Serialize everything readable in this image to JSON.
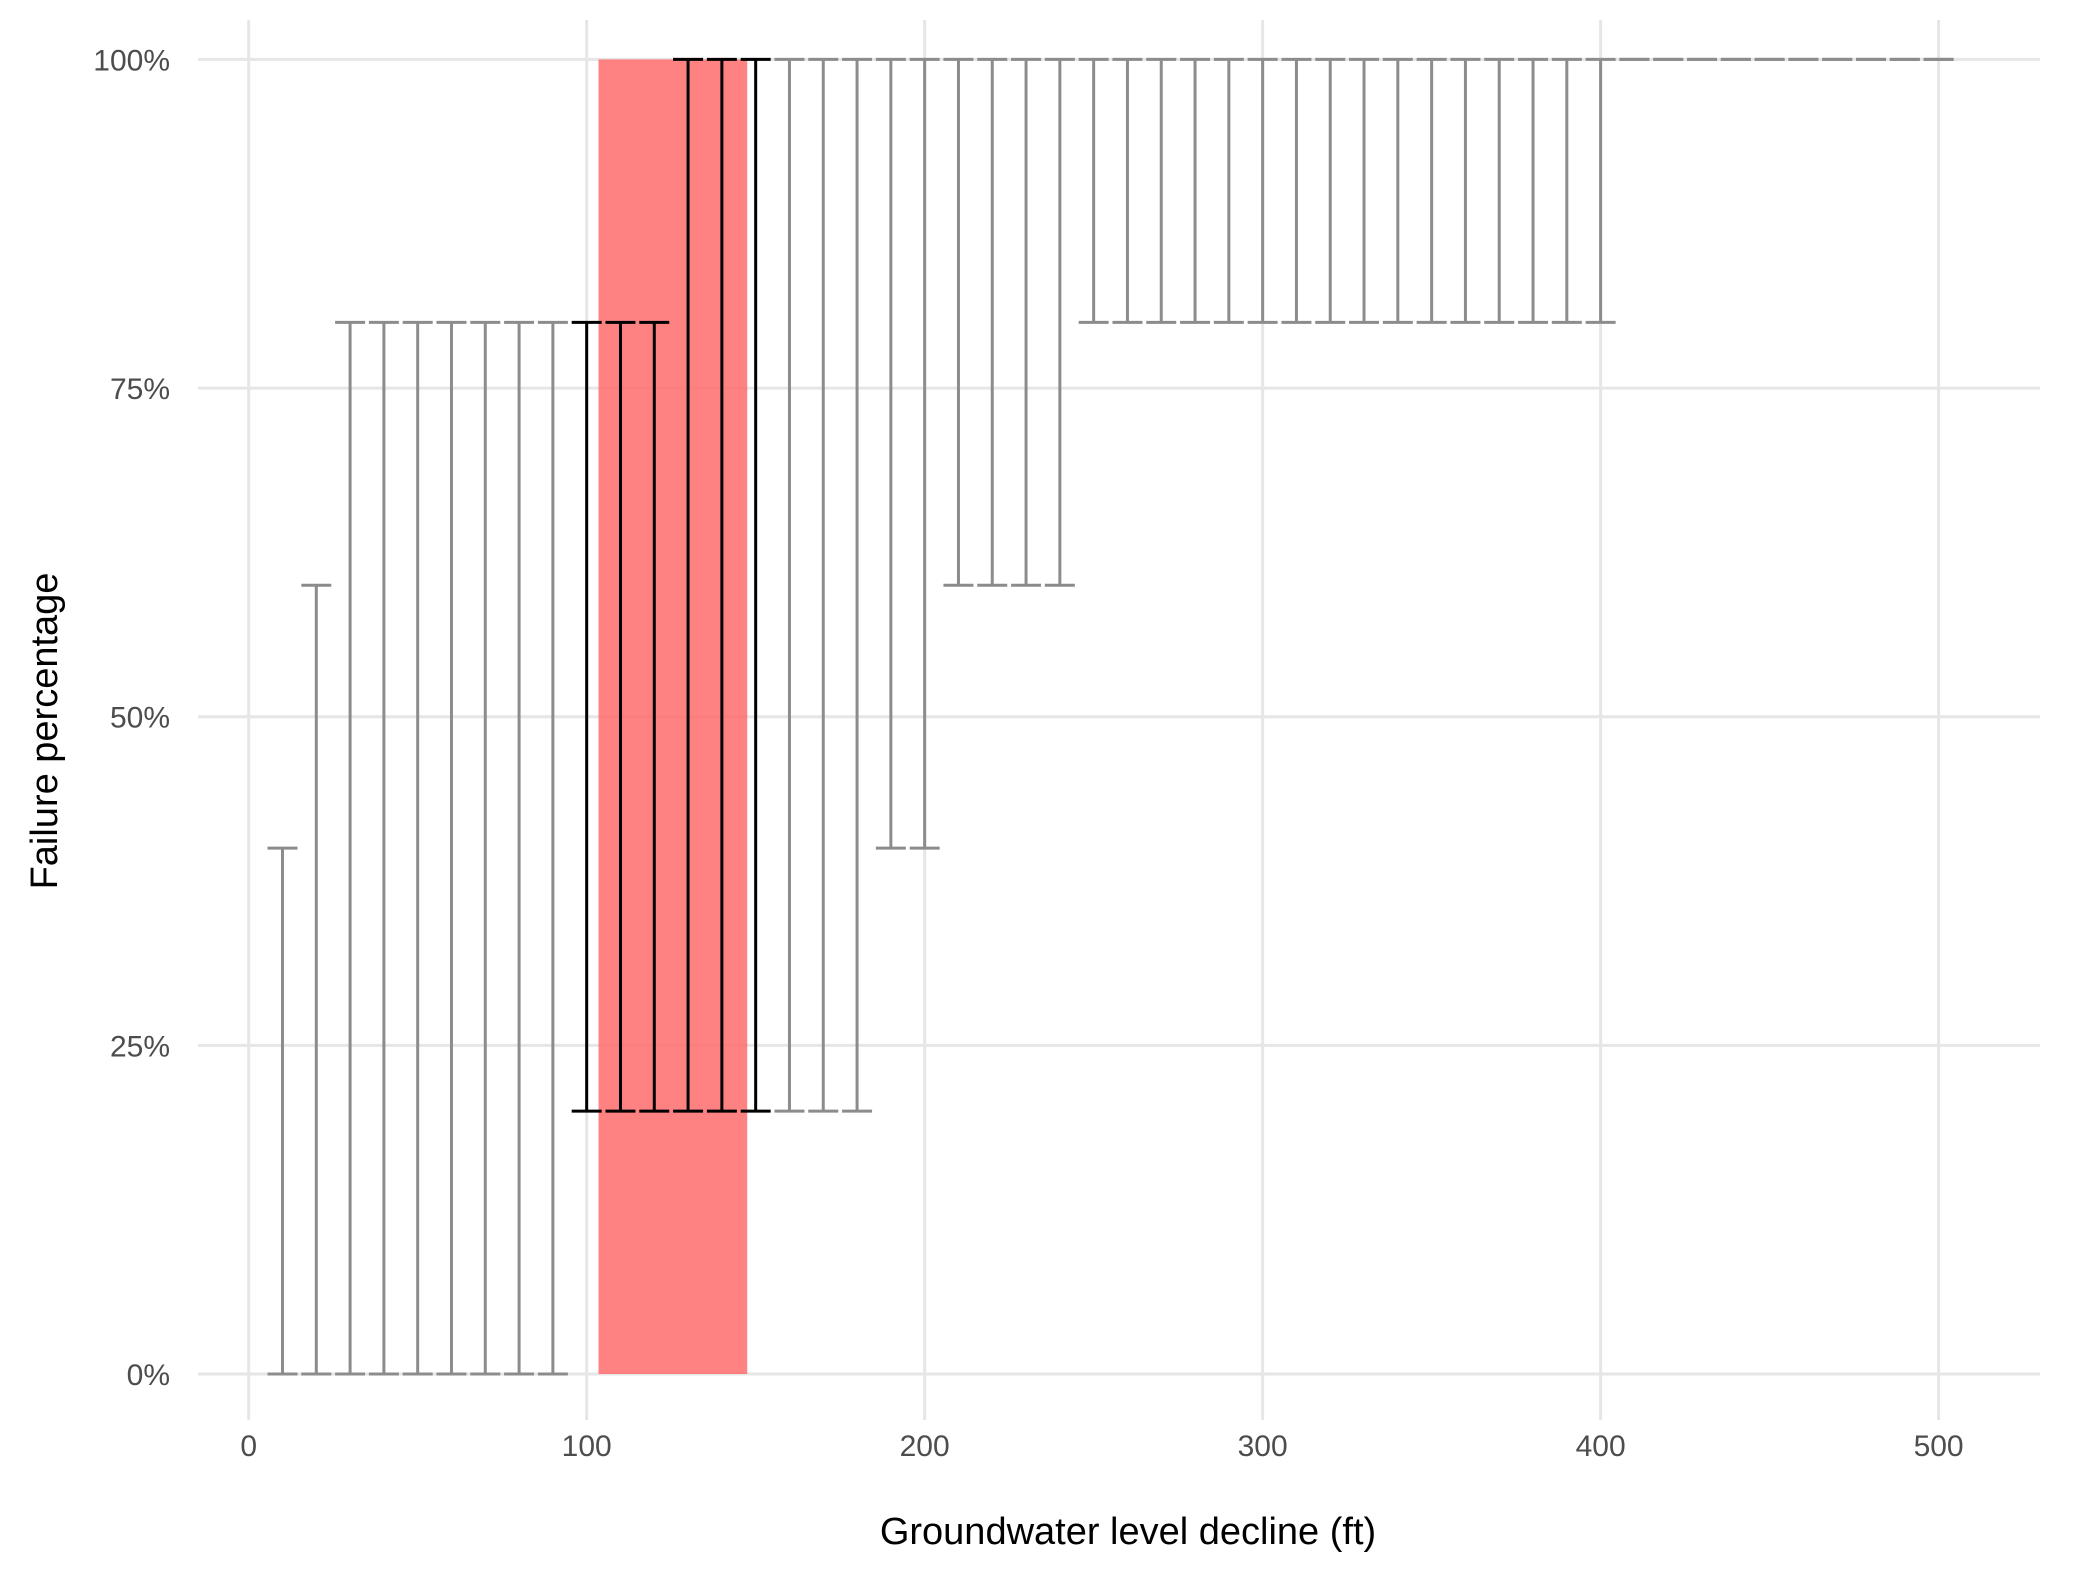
{
  "chart_data": {
    "type": "errorbar",
    "xlabel": "Groundwater level decline (ft)",
    "ylabel": "Failure percentage",
    "xlim": [
      -15,
      530
    ],
    "ylim": [
      -3.5,
      103
    ],
    "x_ticks": [
      0,
      100,
      200,
      300,
      400,
      500
    ],
    "x_tick_labels": [
      "0",
      "100",
      "200",
      "300",
      "400",
      "500"
    ],
    "y_ticks": [
      0,
      25,
      50,
      75,
      100
    ],
    "y_tick_labels": [
      "0%",
      "25%",
      "50%",
      "75%",
      "100%"
    ],
    "grid": true,
    "highlight_band": {
      "x_range": [
        103.5,
        147.5
      ],
      "y_range": [
        0,
        100
      ],
      "color": "#ff6666"
    },
    "error_bars": [
      {
        "x": 10,
        "lower": 0,
        "upper": 40,
        "highlighted": false
      },
      {
        "x": 20,
        "lower": 0,
        "upper": 60,
        "highlighted": false
      },
      {
        "x": 30,
        "lower": 0,
        "upper": 80,
        "highlighted": false
      },
      {
        "x": 40,
        "lower": 0,
        "upper": 80,
        "highlighted": false
      },
      {
        "x": 50,
        "lower": 0,
        "upper": 80,
        "highlighted": false
      },
      {
        "x": 60,
        "lower": 0,
        "upper": 80,
        "highlighted": false
      },
      {
        "x": 70,
        "lower": 0,
        "upper": 80,
        "highlighted": false
      },
      {
        "x": 80,
        "lower": 0,
        "upper": 80,
        "highlighted": false
      },
      {
        "x": 90,
        "lower": 0,
        "upper": 80,
        "highlighted": false
      },
      {
        "x": 100,
        "lower": 20,
        "upper": 80,
        "highlighted": true
      },
      {
        "x": 110,
        "lower": 20,
        "upper": 80,
        "highlighted": true
      },
      {
        "x": 120,
        "lower": 20,
        "upper": 80,
        "highlighted": true
      },
      {
        "x": 130,
        "lower": 20,
        "upper": 100,
        "highlighted": true
      },
      {
        "x": 140,
        "lower": 20,
        "upper": 100,
        "highlighted": true
      },
      {
        "x": 150,
        "lower": 20,
        "upper": 100,
        "highlighted": true
      },
      {
        "x": 160,
        "lower": 20,
        "upper": 100,
        "highlighted": false
      },
      {
        "x": 170,
        "lower": 20,
        "upper": 100,
        "highlighted": false
      },
      {
        "x": 180,
        "lower": 20,
        "upper": 100,
        "highlighted": false
      },
      {
        "x": 190,
        "lower": 40,
        "upper": 100,
        "highlighted": false
      },
      {
        "x": 200,
        "lower": 40,
        "upper": 100,
        "highlighted": false
      },
      {
        "x": 210,
        "lower": 60,
        "upper": 100,
        "highlighted": false
      },
      {
        "x": 220,
        "lower": 60,
        "upper": 100,
        "highlighted": false
      },
      {
        "x": 230,
        "lower": 60,
        "upper": 100,
        "highlighted": false
      },
      {
        "x": 240,
        "lower": 60,
        "upper": 100,
        "highlighted": false
      },
      {
        "x": 250,
        "lower": 80,
        "upper": 100,
        "highlighted": false
      },
      {
        "x": 260,
        "lower": 80,
        "upper": 100,
        "highlighted": false
      },
      {
        "x": 270,
        "lower": 80,
        "upper": 100,
        "highlighted": false
      },
      {
        "x": 280,
        "lower": 80,
        "upper": 100,
        "highlighted": false
      },
      {
        "x": 290,
        "lower": 80,
        "upper": 100,
        "highlighted": false
      },
      {
        "x": 300,
        "lower": 80,
        "upper": 100,
        "highlighted": false
      },
      {
        "x": 310,
        "lower": 80,
        "upper": 100,
        "highlighted": false
      },
      {
        "x": 320,
        "lower": 80,
        "upper": 100,
        "highlighted": false
      },
      {
        "x": 330,
        "lower": 80,
        "upper": 100,
        "highlighted": false
      },
      {
        "x": 340,
        "lower": 80,
        "upper": 100,
        "highlighted": false
      },
      {
        "x": 350,
        "lower": 80,
        "upper": 100,
        "highlighted": false
      },
      {
        "x": 360,
        "lower": 80,
        "upper": 100,
        "highlighted": false
      },
      {
        "x": 370,
        "lower": 80,
        "upper": 100,
        "highlighted": false
      },
      {
        "x": 380,
        "lower": 80,
        "upper": 100,
        "highlighted": false
      },
      {
        "x": 390,
        "lower": 80,
        "upper": 100,
        "highlighted": false
      },
      {
        "x": 400,
        "lower": 80,
        "upper": 100,
        "highlighted": false
      },
      {
        "x": 410,
        "lower": 100,
        "upper": 100,
        "highlighted": false
      },
      {
        "x": 420,
        "lower": 100,
        "upper": 100,
        "highlighted": false
      },
      {
        "x": 430,
        "lower": 100,
        "upper": 100,
        "highlighted": false
      },
      {
        "x": 440,
        "lower": 100,
        "upper": 100,
        "highlighted": false
      },
      {
        "x": 450,
        "lower": 100,
        "upper": 100,
        "highlighted": false
      },
      {
        "x": 460,
        "lower": 100,
        "upper": 100,
        "highlighted": false
      },
      {
        "x": 470,
        "lower": 100,
        "upper": 100,
        "highlighted": false
      },
      {
        "x": 480,
        "lower": 100,
        "upper": 100,
        "highlighted": false
      },
      {
        "x": 490,
        "lower": 100,
        "upper": 100,
        "highlighted": false
      },
      {
        "x": 500,
        "lower": 100,
        "upper": 100,
        "highlighted": false
      }
    ],
    "colors": {
      "normal": "#8c8c8c",
      "highlighted": "#000000",
      "grid": "#e6e6e6"
    }
  }
}
